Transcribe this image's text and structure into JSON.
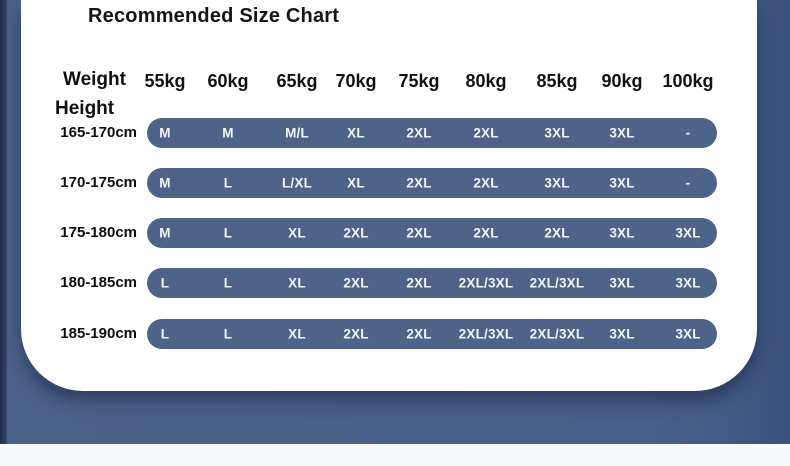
{
  "title": "Recommended Size Chart",
  "axis_labels": {
    "weight": "Weight",
    "height": "Height"
  },
  "chart_data": {
    "type": "table",
    "title": "Recommended Size Chart",
    "column_axis_label": "Weight",
    "row_axis_label": "Height",
    "columns": [
      "55kg",
      "60kg",
      "65kg",
      "70kg",
      "75kg",
      "80kg",
      "85kg",
      "90kg",
      "100kg"
    ],
    "rows": [
      {
        "height": "165-170cm",
        "sizes": [
          "M",
          "M",
          "M/L",
          "XL",
          "2XL",
          "2XL",
          "3XL",
          "3XL",
          "-"
        ]
      },
      {
        "height": "170-175cm",
        "sizes": [
          "M",
          "L",
          "L/XL",
          "XL",
          "2XL",
          "2XL",
          "3XL",
          "3XL",
          "-"
        ]
      },
      {
        "height": "175-180cm",
        "sizes": [
          "M",
          "L",
          "XL",
          "2XL",
          "2XL",
          "2XL",
          "2XL",
          "3XL",
          "3XL"
        ]
      },
      {
        "height": "180-185cm",
        "sizes": [
          "L",
          "L",
          "XL",
          "2XL",
          "2XL",
          "2XL/3XL",
          "2XL/3XL",
          "3XL",
          "3XL"
        ]
      },
      {
        "height": "185-190cm",
        "sizes": [
          "L",
          "L",
          "XL",
          "2XL",
          "2XL",
          "2XL/3XL",
          "2XL/3XL",
          "3XL",
          "3XL"
        ]
      }
    ]
  },
  "colors": {
    "pill": "#4d6388",
    "background": "#48608a",
    "left_strip": "#2a3756",
    "bottom_band": "#f9fafc",
    "card": "#ffffff",
    "pill_text": "#f2f5fa"
  }
}
